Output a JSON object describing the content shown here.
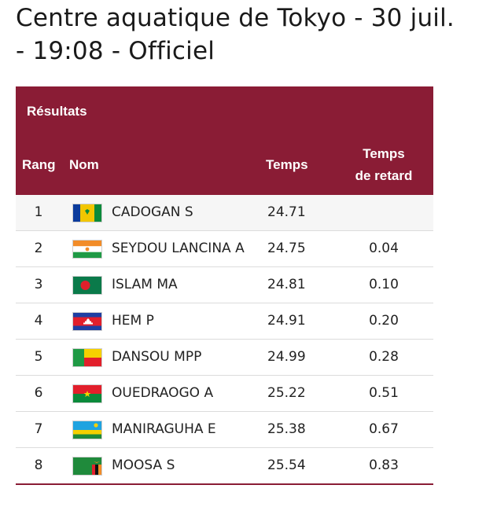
{
  "header": {
    "title": "Centre aquatique de Tokyo - 30 juil. - 19:08 - Officiel"
  },
  "table": {
    "section_label": "Résultats",
    "columns": {
      "rank": "Rang",
      "name": "Nom",
      "time": "Temps",
      "behind_line1": "Temps",
      "behind_line2": "de retard"
    },
    "rows": [
      {
        "rank": "1",
        "name": "CADOGAN S",
        "time": "24.71",
        "behind": "",
        "flag_icon": "saint-vincent-flag-icon"
      },
      {
        "rank": "2",
        "name": "SEYDOU LANCINA A",
        "time": "24.75",
        "behind": "0.04",
        "flag_icon": "niger-flag-icon"
      },
      {
        "rank": "3",
        "name": "ISLAM MA",
        "time": "24.81",
        "behind": "0.10",
        "flag_icon": "bangladesh-flag-icon"
      },
      {
        "rank": "4",
        "name": "HEM P",
        "time": "24.91",
        "behind": "0.20",
        "flag_icon": "cambodia-flag-icon"
      },
      {
        "rank": "5",
        "name": "DANSOU MPP",
        "time": "24.99",
        "behind": "0.28",
        "flag_icon": "benin-flag-icon"
      },
      {
        "rank": "6",
        "name": "OUEDRAOGO A",
        "time": "25.22",
        "behind": "0.51",
        "flag_icon": "burkina-faso-flag-icon"
      },
      {
        "rank": "7",
        "name": "MANIRAGUHA E",
        "time": "25.38",
        "behind": "0.67",
        "flag_icon": "rwanda-flag-icon"
      },
      {
        "rank": "8",
        "name": "MOOSA S",
        "time": "25.54",
        "behind": "0.83",
        "flag_icon": "zambia-flag-icon"
      }
    ]
  },
  "colors": {
    "header_bg": "#8a1c35",
    "header_text": "#ffffff"
  }
}
